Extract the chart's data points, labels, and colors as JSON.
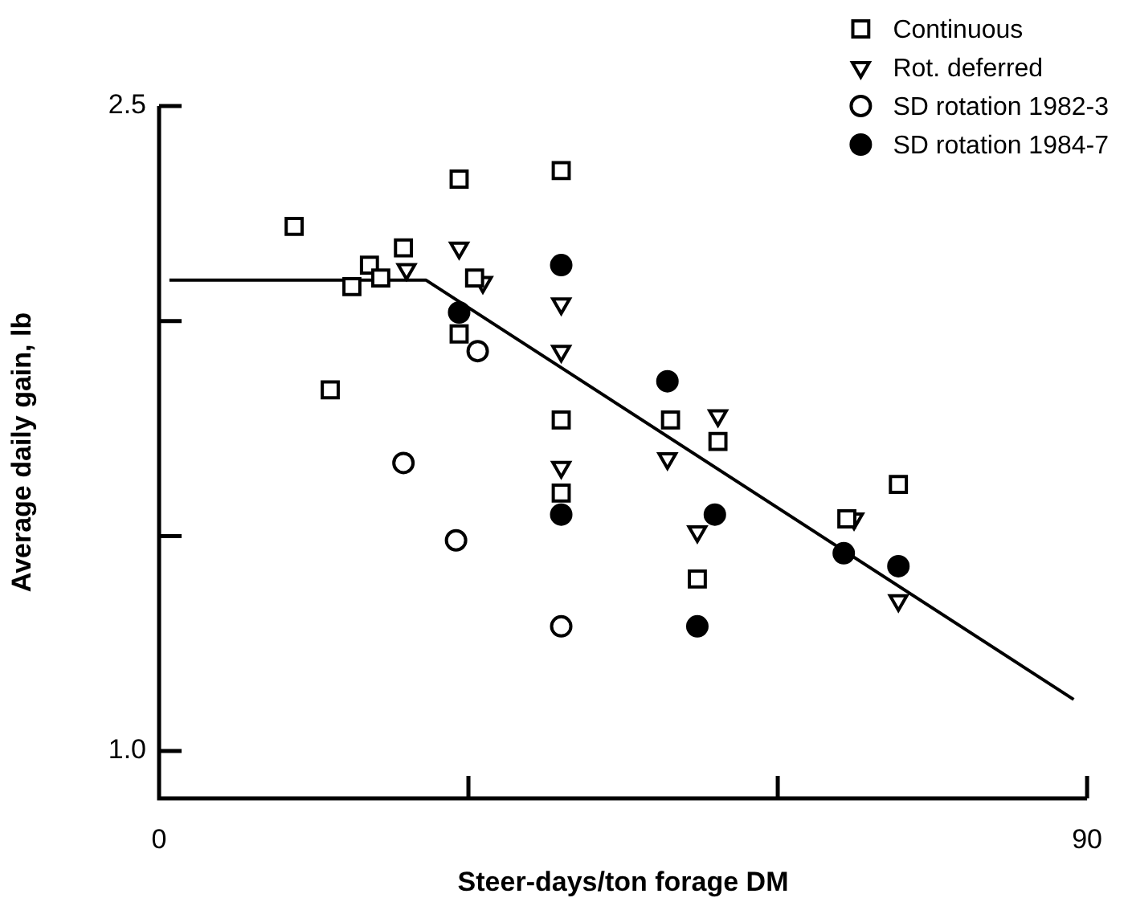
{
  "chart_data": {
    "type": "scatter",
    "xlabel": "Steer-days/ton forage DM",
    "ylabel": "Average daily gain, lb",
    "xlim": [
      0,
      90
    ],
    "xticks": [
      0,
      {
        "value": 30,
        "label": null
      },
      {
        "value": 60,
        "label": null
      },
      90
    ],
    "ylim": [
      0.89,
      2.5
    ],
    "yticks": [
      {
        "value": 1.0,
        "label": "1.0"
      },
      {
        "value": 1.5,
        "label": null
      },
      {
        "value": 2.0,
        "label": null
      },
      2.5
    ],
    "grid": false,
    "legend": "top right",
    "series": [
      {
        "name": "Continuous",
        "color": "#000000",
        "marker": "square",
        "x": [
          13.1,
          29.1,
          39.0,
          23.7,
          20.4,
          21.5,
          18.7,
          29.1,
          30.6,
          16.6,
          39.0,
          39.0,
          49.6,
          54.2,
          71.7,
          52.2,
          66.7
        ],
        "values": [
          2.22,
          2.33,
          2.35,
          2.17,
          2.13,
          2.1,
          2.08,
          1.97,
          2.1,
          1.84,
          1.77,
          1.6,
          1.77,
          1.72,
          1.62,
          1.4,
          1.54
        ]
      },
      {
        "name": "Rot. deferred",
        "color": "#000000",
        "marker": "triangle",
        "x": [
          29.1,
          24.0,
          31.4,
          39.0,
          39.0,
          39.0,
          49.3,
          54.2,
          52.2,
          67.4,
          71.7
        ],
        "values": [
          2.17,
          2.12,
          2.09,
          2.04,
          1.93,
          1.66,
          1.68,
          1.78,
          1.51,
          1.54,
          1.35
        ]
      },
      {
        "name": "SD rotation 1982-3",
        "color": "#000000",
        "marker": "circle",
        "x": [
          30.9,
          23.7,
          28.8,
          39.0
        ],
        "values": [
          1.93,
          1.67,
          1.49,
          1.29
        ]
      },
      {
        "name": "SD rotation 1984-7",
        "color": "#000000",
        "marker": "filled circle",
        "x": [
          29.1,
          39.0,
          39.0,
          49.3,
          53.9,
          52.2,
          66.4,
          71.7
        ],
        "values": [
          2.02,
          2.13,
          1.55,
          1.86,
          1.55,
          1.29,
          1.46,
          1.43
        ]
      },
      {
        "type": "line",
        "color": "#000000",
        "marker": "none",
        "line_style": "solid",
        "x": [
          1,
          25.9,
          88.7
        ],
        "values": [
          2.095,
          2.095,
          1.12
        ]
      }
    ]
  }
}
